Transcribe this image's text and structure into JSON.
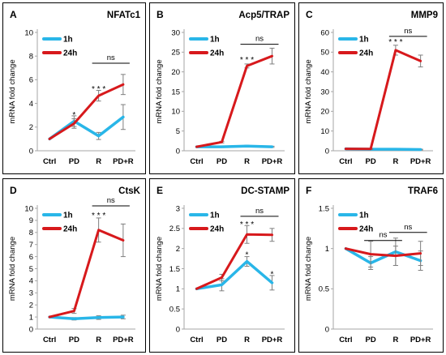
{
  "colors": {
    "h1": "#29b6e8",
    "h24": "#d7191c",
    "axis": "#a6a6a6",
    "err": "#7f7f7f"
  },
  "chart_data": [
    {
      "panel": "A",
      "title": "NFATc1",
      "type": "line",
      "categories": [
        "Ctrl",
        "PD",
        "R",
        "PD+R"
      ],
      "ylabel": "mRNA fold change",
      "ylim": [
        0,
        10
      ],
      "yticks": [
        0,
        2,
        4,
        6,
        8,
        10
      ],
      "series": [
        {
          "name": "1h",
          "values": [
            1.0,
            2.5,
            1.25,
            2.85
          ],
          "errors": [
            0,
            0.45,
            0.3,
            1.05
          ]
        },
        {
          "name": "24h",
          "values": [
            1.0,
            2.3,
            4.65,
            5.6
          ],
          "errors": [
            0,
            0.4,
            0.45,
            0.85
          ]
        }
      ],
      "annotations": [
        {
          "text": "*",
          "cat": 1,
          "y": 3.0
        },
        {
          "text": "* * *",
          "cat": 2,
          "y": 5.2
        }
      ],
      "bracket": {
        "text": "ns",
        "from": 2,
        "to": 3,
        "y": 7.4
      }
    },
    {
      "panel": "B",
      "title": "Acp5/TRAP",
      "type": "line",
      "categories": [
        "Ctrl",
        "PD",
        "R",
        "PD+R"
      ],
      "ylabel": "mRNA fold change",
      "ylim": [
        0,
        30
      ],
      "yticks": [
        0,
        5,
        10,
        15,
        20,
        25,
        30
      ],
      "series": [
        {
          "name": "1h",
          "values": [
            1.0,
            1.0,
            1.2,
            1.0
          ],
          "errors": [
            0,
            0.15,
            0.2,
            0.15
          ]
        },
        {
          "name": "24h",
          "values": [
            1.0,
            2.2,
            21.5,
            24.0
          ],
          "errors": [
            0,
            0.2,
            0.5,
            2.0
          ]
        }
      ],
      "annotations": [
        {
          "text": "* * *",
          "cat": 2,
          "y": 23.0
        }
      ],
      "bracket": {
        "text": "ns",
        "from": 2,
        "to": 3,
        "y": 27.0
      }
    },
    {
      "panel": "C",
      "title": "MMP9",
      "type": "line",
      "categories": [
        "Ctrl",
        "PD",
        "R",
        "PD+R"
      ],
      "ylabel": "mRNA fold change",
      "ylim": [
        0,
        60
      ],
      "yticks": [
        0,
        10,
        20,
        30,
        40,
        50,
        60
      ],
      "series": [
        {
          "name": "1h",
          "values": [
            1.0,
            0.8,
            0.8,
            0.6
          ],
          "errors": [
            0,
            0.2,
            0.2,
            0.2
          ]
        },
        {
          "name": "24h",
          "values": [
            1.0,
            0.9,
            51.0,
            45.5
          ],
          "errors": [
            0,
            0.2,
            2.5,
            3.0
          ]
        }
      ],
      "annotations": [
        {
          "text": "* * *",
          "cat": 2,
          "y": 55.0
        }
      ],
      "bracket": {
        "text": "ns",
        "from": 2,
        "to": 3,
        "y": 58.0
      }
    },
    {
      "panel": "D",
      "title": "CtsK",
      "type": "line",
      "categories": [
        "Ctrl",
        "PD",
        "R",
        "PD+R"
      ],
      "ylabel": "mRNA fold change",
      "ylim": [
        0,
        10
      ],
      "yticks": [
        0,
        1,
        2,
        3,
        4,
        5,
        6,
        7,
        8,
        9,
        10
      ],
      "series": [
        {
          "name": "1h",
          "values": [
            1.0,
            0.85,
            0.95,
            1.0
          ],
          "errors": [
            0,
            0.1,
            0.15,
            0.15
          ]
        },
        {
          "name": "24h",
          "values": [
            1.0,
            1.5,
            8.2,
            7.35
          ],
          "errors": [
            0,
            0.2,
            1.0,
            1.35
          ]
        }
      ],
      "annotations": [
        {
          "text": "* * *",
          "cat": 2,
          "y": 9.4
        }
      ],
      "bracket": {
        "text": "ns",
        "from": 2,
        "to": 3,
        "y": 10.2
      }
    },
    {
      "panel": "E",
      "title": "DC-STAMP",
      "type": "line",
      "categories": [
        "Ctrl",
        "PD",
        "R",
        "PD+R"
      ],
      "ylabel": "mRNA fold change",
      "ylim": [
        0,
        3
      ],
      "yticks": [
        0,
        0.5,
        1,
        1.5,
        2,
        2.5,
        3
      ],
      "series": [
        {
          "name": "1h",
          "values": [
            1.0,
            1.1,
            1.68,
            1.15
          ],
          "errors": [
            0,
            0.15,
            0.12,
            0.18
          ]
        },
        {
          "name": "24h",
          "values": [
            1.0,
            1.28,
            2.35,
            2.34
          ],
          "errors": [
            0,
            0.08,
            0.22,
            0.16
          ]
        }
      ],
      "annotations": [
        {
          "text": "* * *",
          "cat": 2,
          "y": 2.6
        },
        {
          "text": "*",
          "cat": 2,
          "y": 1.84
        },
        {
          "text": "*",
          "cat": 3,
          "y": 1.36
        }
      ],
      "bracket": {
        "text": "ns",
        "from": 2,
        "to": 3,
        "y": 2.8
      }
    },
    {
      "panel": "F",
      "title": "TRAF6",
      "type": "line",
      "categories": [
        "Ctrl",
        "PD",
        "R",
        "PD+R"
      ],
      "ylabel": "mRNA fold change",
      "ylim": [
        0,
        1.5
      ],
      "yticks": [
        0,
        0.5,
        1,
        1.5
      ],
      "series": [
        {
          "name": "1h",
          "values": [
            1.0,
            0.82,
            0.96,
            0.85
          ],
          "errors": [
            0,
            0.08,
            0.17,
            0.12
          ]
        },
        {
          "name": "24h",
          "values": [
            1.0,
            0.93,
            0.91,
            0.94
          ],
          "errors": [
            0,
            0.16,
            0.12,
            0.15
          ]
        }
      ],
      "annotations": [],
      "brackets": [
        {
          "text": "ns",
          "from": 1,
          "to": 2,
          "y": 1.1
        },
        {
          "text": "ns",
          "from": 2,
          "to": 3,
          "y": 1.2
        }
      ],
      "muted_legend": true
    }
  ]
}
